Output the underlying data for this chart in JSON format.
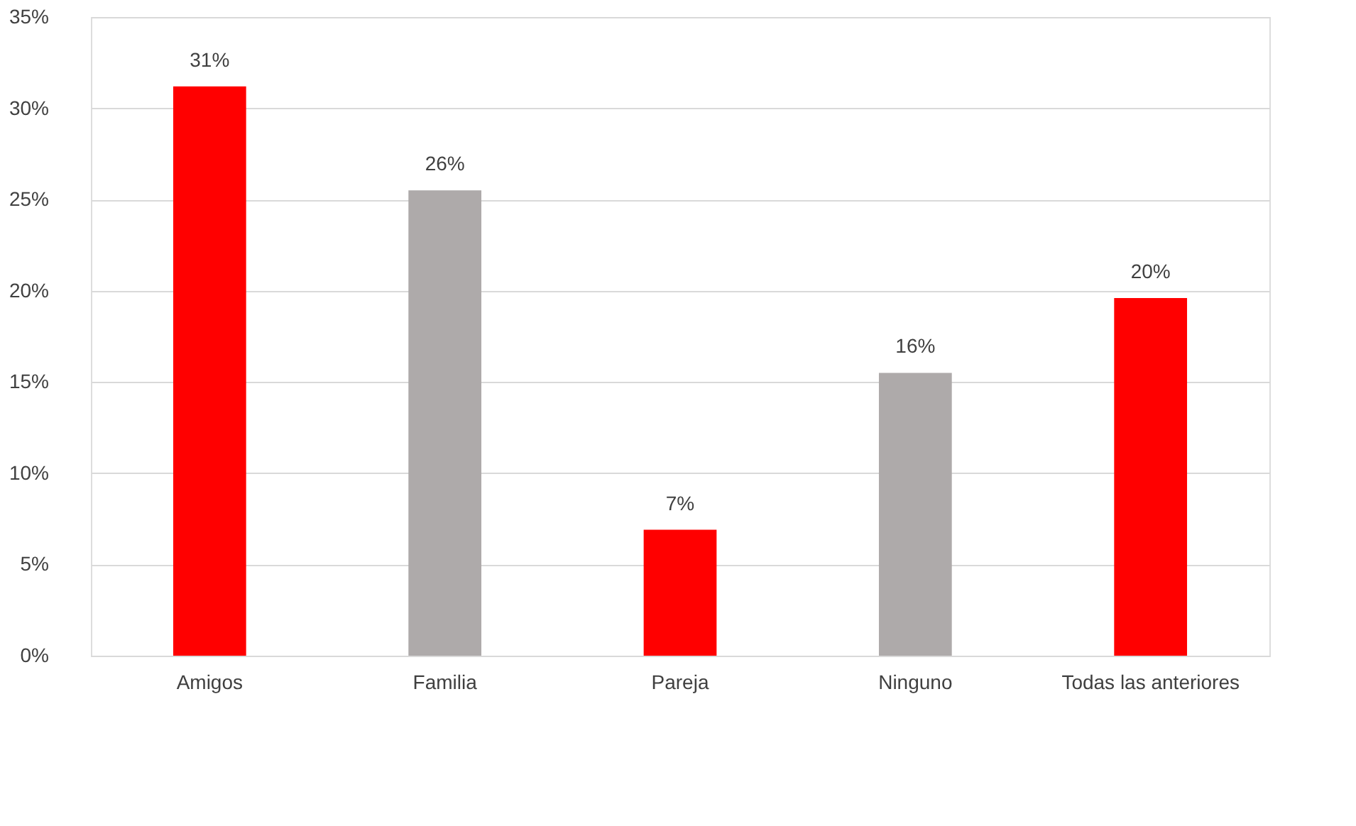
{
  "chart_data": {
    "type": "bar",
    "categories": [
      "Amigos",
      "Familia",
      "Pareja",
      "Ninguno",
      "Todas las anteriores"
    ],
    "values": [
      31.2,
      25.5,
      6.9,
      15.5,
      19.6
    ],
    "colors": [
      "#ff0000",
      "#aeaaaa",
      "#ff0000",
      "#aeaaaa",
      "#ff0000"
    ],
    "value_labels": [
      "31%",
      "26%",
      "7%",
      "16%",
      "20%"
    ],
    "ylim": [
      0,
      35
    ],
    "yticks": [
      {
        "value": 0,
        "label": "0%"
      },
      {
        "value": 5,
        "label": "5%"
      },
      {
        "value": 10,
        "label": "10%"
      },
      {
        "value": 15,
        "label": "15%"
      },
      {
        "value": 20,
        "label": "20%"
      },
      {
        "value": 25,
        "label": "25%"
      },
      {
        "value": 30,
        "label": "30%"
      },
      {
        "value": 35,
        "label": "35%"
      }
    ],
    "grid": "y"
  }
}
